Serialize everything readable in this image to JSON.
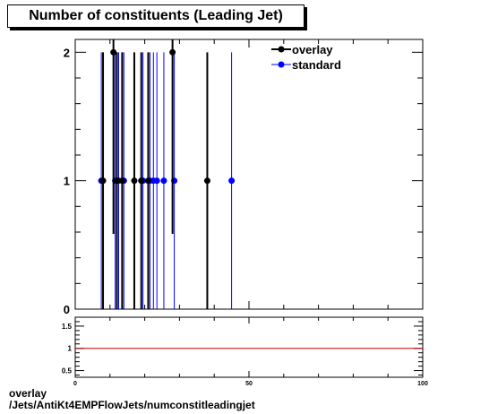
{
  "title": "Number of constituents (Leading Jet)",
  "footer": {
    "line1": "overlay",
    "line2": "/Jets/AntiKt4EMPFlowJets/numconstitleadingjet"
  },
  "colors": {
    "overlay": "#000000",
    "standard": "#0000ff",
    "ratio_line": "#cc0000"
  },
  "chart_data": [
    {
      "type": "scatter",
      "title": "Number of constituents (Leading Jet)",
      "xlim": [
        0,
        100
      ],
      "ylim": [
        0,
        2.1
      ],
      "ytick_labels": [
        "0",
        "1",
        "2"
      ],
      "legend_position": "top-right",
      "series": [
        {
          "name": "overlay",
          "points": [
            [
              8,
              1
            ],
            [
              11,
              2
            ],
            [
              12,
              1
            ],
            [
              13.5,
              1
            ],
            [
              17,
              1
            ],
            [
              19,
              1
            ],
            [
              21,
              1
            ],
            [
              28,
              2
            ],
            [
              38,
              1
            ]
          ]
        },
        {
          "name": "standard",
          "points": [
            [
              7.5,
              1
            ],
            [
              11.5,
              1
            ],
            [
              12.5,
              1
            ],
            [
              14,
              1
            ],
            [
              19.5,
              1
            ],
            [
              21.5,
              1
            ],
            [
              22.5,
              1
            ],
            [
              23.5,
              1
            ],
            [
              25.5,
              1
            ],
            [
              28.5,
              1
            ],
            [
              45,
              1
            ]
          ]
        }
      ]
    },
    {
      "type": "line",
      "xlim": [
        0,
        100
      ],
      "ylim": [
        0.35,
        1.7
      ],
      "xtick_labels": [
        "0",
        "50",
        "100"
      ],
      "ytick_labels": [
        "0.5",
        "1",
        "1.5"
      ],
      "series": [
        {
          "values": [
            [
              0,
              1
            ],
            [
              100,
              1
            ]
          ]
        }
      ]
    }
  ]
}
